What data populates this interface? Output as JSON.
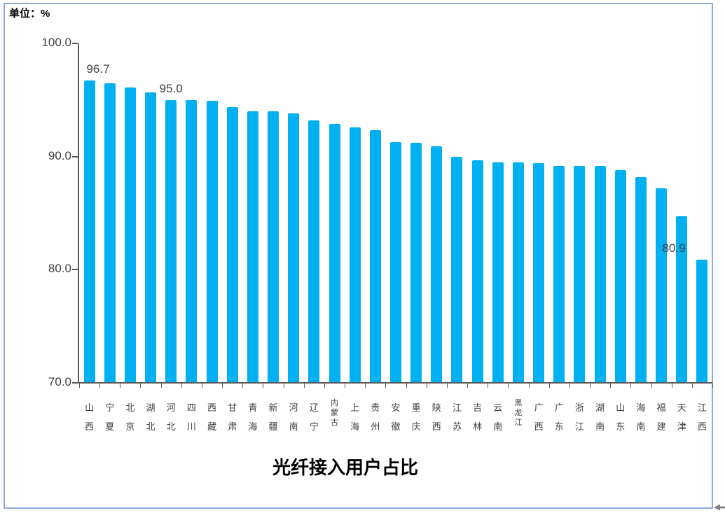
{
  "unit_label": "单位：%",
  "chart_data": {
    "type": "bar",
    "title": "光纤接入用户占比",
    "unit": "%",
    "categories": [
      "山西",
      "宁夏",
      "北京",
      "湖北",
      "河北",
      "四川",
      "西藏",
      "甘肃",
      "青海",
      "新疆",
      "河南",
      "辽宁",
      "内蒙古",
      "上海",
      "贵州",
      "安徽",
      "重庆",
      "陕西",
      "江苏",
      "吉林",
      "云南",
      "黑龙江",
      "广西",
      "广东",
      "浙江",
      "湖南",
      "山东",
      "海南",
      "福建",
      "天津",
      "江西"
    ],
    "values": [
      96.7,
      96.5,
      96.1,
      95.7,
      95.0,
      95.0,
      94.9,
      94.4,
      94.0,
      94.0,
      93.8,
      93.2,
      92.9,
      92.6,
      92.3,
      91.3,
      91.2,
      90.9,
      90.0,
      89.7,
      89.5,
      89.5,
      89.4,
      89.2,
      89.2,
      89.2,
      88.8,
      88.2,
      87.2,
      84.7,
      80.9
    ],
    "shown_data_labels": [
      {
        "category": "山西",
        "text": "96.7"
      },
      {
        "category": "河北",
        "text": "95.0"
      },
      {
        "category": "江西",
        "text": "80.9"
      }
    ],
    "ylim": [
      70,
      100
    ],
    "yticks": [
      100,
      90,
      80,
      70
    ],
    "ytick_labels": [
      "100.0",
      "90.0",
      "80.0",
      "70.0"
    ],
    "grid": false,
    "legend": false,
    "bar_color": "#00B0F0"
  },
  "colors": {
    "bar": "#00B0F0",
    "frame_border": "#8FAADC",
    "axis": "#595959",
    "tick_text": "#404040",
    "arrow": "#7f7f7f"
  },
  "icons": {
    "corner_marker": "left-arrow"
  }
}
